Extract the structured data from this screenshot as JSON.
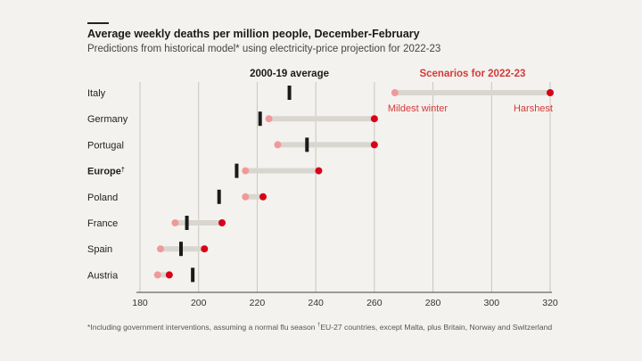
{
  "header": {
    "title": "Average weekly deaths per million people, December-February",
    "subtitle": "Predictions from historical model* using electricity-price projection for 2022-23"
  },
  "footnote": {
    "part1": "*Including government interventions, assuming a normal flu season ",
    "dagger": "†",
    "part2": "EU-27 countries, except Malta, plus Britain, Norway and Switzerland"
  },
  "chart_data": {
    "type": "dumbbell",
    "xlim": [
      180,
      320
    ],
    "xticks": [
      180,
      200,
      220,
      240,
      260,
      280,
      300,
      320
    ],
    "legend": {
      "average": "2000-19 average",
      "scenarios": "Scenarios for 2022-23",
      "mildest": "Mildest winter",
      "harshest": "Harshest"
    },
    "colors": {
      "mildest": "#ef9a9a",
      "harshest": "#d8001a",
      "average": "#1a1a1a",
      "range": "#d9d6d0",
      "scenario_text": "#d33a3a",
      "grid": "#c9c6c1"
    },
    "rows": [
      {
        "label": "Italy",
        "sup": "",
        "bold": false,
        "average": 231,
        "mildest": 267,
        "harshest": 320
      },
      {
        "label": "Germany",
        "sup": "",
        "bold": false,
        "average": 221,
        "mildest": 224,
        "harshest": 260
      },
      {
        "label": "Portugal",
        "sup": "",
        "bold": false,
        "average": 237,
        "mildest": 227,
        "harshest": 260
      },
      {
        "label": "Europe",
        "sup": "†",
        "bold": true,
        "average": 213,
        "mildest": 216,
        "harshest": 241
      },
      {
        "label": "Poland",
        "sup": "",
        "bold": false,
        "average": 207,
        "mildest": 216,
        "harshest": 222
      },
      {
        "label": "France",
        "sup": "",
        "bold": false,
        "average": 196,
        "mildest": 192,
        "harshest": 208
      },
      {
        "label": "Spain",
        "sup": "",
        "bold": false,
        "average": 194,
        "mildest": 187,
        "harshest": 202
      },
      {
        "label": "Austria",
        "sup": "",
        "bold": false,
        "average": 198,
        "mildest": 186,
        "harshest": 190
      }
    ]
  }
}
